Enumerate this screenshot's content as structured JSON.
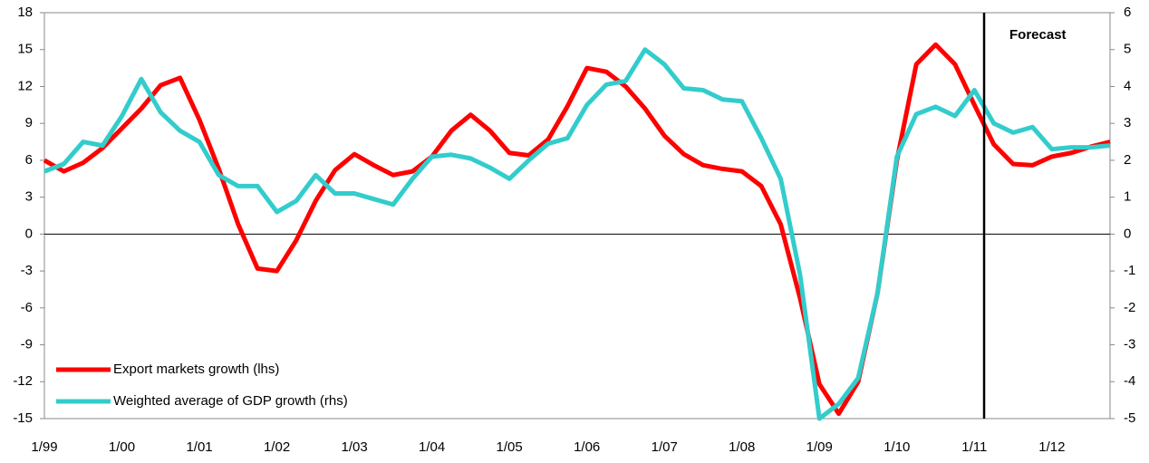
{
  "chart_data": {
    "type": "line",
    "categories": [
      "1/99",
      null,
      null,
      null,
      "1/00",
      null,
      null,
      null,
      "1/01",
      null,
      null,
      null,
      "1/02",
      null,
      null,
      null,
      "1/03",
      null,
      null,
      null,
      "1/04",
      null,
      null,
      null,
      "1/05",
      null,
      null,
      null,
      "1/06",
      null,
      null,
      null,
      "1/07",
      null,
      null,
      null,
      "1/08",
      null,
      null,
      null,
      "1/09",
      null,
      null,
      null,
      "1/10",
      null,
      null,
      null,
      "1/11",
      null,
      null,
      null,
      "1/12",
      null,
      null,
      null
    ],
    "series": [
      {
        "name": "Export markets growth (lhs)",
        "color": "#ff0000",
        "axis": "y",
        "values": [
          6.0,
          5.1,
          5.8,
          7.0,
          8.6,
          10.2,
          12.1,
          12.7,
          9.3,
          5.3,
          0.8,
          -2.8,
          -3.0,
          -0.5,
          2.7,
          5.2,
          6.5,
          5.6,
          4.8,
          5.1,
          6.3,
          8.4,
          9.7,
          8.4,
          6.6,
          6.4,
          7.7,
          10.4,
          13.5,
          13.2,
          12.0,
          10.2,
          8.0,
          6.5,
          5.6,
          5.3,
          5.1,
          3.9,
          0.8,
          -5.2,
          -12.2,
          -14.6,
          -12.0,
          -4.8,
          6.0,
          13.8,
          15.4,
          13.8,
          10.5,
          7.3,
          5.7,
          5.6,
          6.3,
          6.6,
          7.1,
          7.5
        ]
      },
      {
        "name": "Weighted average of GDP growth (rhs)",
        "color": "#33cccc",
        "axis": "y2",
        "values": [
          1.7,
          1.9,
          2.5,
          2.4,
          3.2,
          4.2,
          3.3,
          2.8,
          2.5,
          1.6,
          1.3,
          1.3,
          0.6,
          0.9,
          1.6,
          1.1,
          1.1,
          0.95,
          0.8,
          1.5,
          2.1,
          2.15,
          2.05,
          1.8,
          1.5,
          2.0,
          2.45,
          2.6,
          3.5,
          4.05,
          4.15,
          5.0,
          4.6,
          3.95,
          3.9,
          3.65,
          3.6,
          2.6,
          1.5,
          -1.1,
          -5.0,
          -4.6,
          -3.9,
          -1.6,
          2.1,
          3.25,
          3.45,
          3.2,
          3.9,
          3.0,
          2.75,
          2.9,
          2.3,
          2.35,
          2.35,
          2.4
        ]
      }
    ],
    "ylim": [
      -15,
      18
    ],
    "yticks": [
      -15,
      -12,
      -9,
      -6,
      -3,
      0,
      3,
      6,
      9,
      12,
      15,
      18
    ],
    "y2lim": [
      -5,
      6
    ],
    "y2ticks": [
      -5,
      -4,
      -3,
      -2,
      -1,
      0,
      1,
      2,
      3,
      4,
      5,
      6
    ],
    "annotations": [
      {
        "text": "Forecast",
        "x": 48.5
      }
    ],
    "legend": "lower left"
  }
}
